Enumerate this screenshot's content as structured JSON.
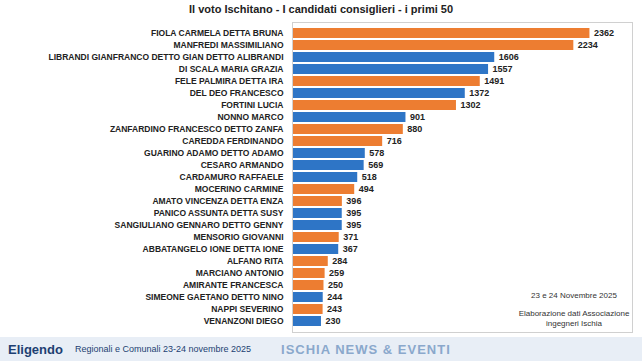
{
  "chart_data": {
    "type": "bar",
    "title": "Il voto Ischitano - I candidati consiglieri - i primi 50",
    "orientation": "horizontal",
    "data_labels": true,
    "tick_labels": "y",
    "categories": [
      "FIOLA CARMELA DETTA BRUNA",
      "MANFREDI MASSIMILIANO",
      "LIBRANDI GIANFRANCO DETTO GIAN DETTO ALIBRANDI",
      "DI SCALA MARIA GRAZIA",
      "FELE PALMIRA DETTA IRA",
      "DEL DEO FRANCESCO",
      "FORTINI LUCIA",
      "NONNO MARCO",
      "ZANFARDINO FRANCESCO DETTO ZANFA",
      "CAREDDA FERDINANDO",
      "GUARINO ADAMO DETTO ADAMO",
      "CESARO ARMANDO",
      "CARDAMURO RAFFAELE",
      "MOCERINO CARMINE",
      "AMATO VINCENZA DETTA ENZA",
      "PANICO ASSUNTA DETTA SUSY",
      "SANGIULIANO GENNARO DETTO GENNY",
      "MENSORIO GIOVANNI",
      "ABBATANGELO IONE DETTA IONE",
      "ALFANO RITA",
      "MARCIANO ANTONIO",
      "AMIRANTE FRANCESCA",
      "SIMEONE GAETANO DETTO NINO",
      "NAPPI SEVERINO",
      "VENANZONI DIEGO"
    ],
    "values": [
      2362,
      2234,
      1606,
      1557,
      1491,
      1372,
      1302,
      901,
      880,
      716,
      578,
      569,
      518,
      494,
      396,
      395,
      395,
      371,
      367,
      284,
      259,
      250,
      244,
      243,
      230
    ],
    "colors": [
      "#ed7d31",
      "#ed7d31",
      "#2e75c6",
      "#2e75c6",
      "#ed7d31",
      "#2e75c6",
      "#ed7d31",
      "#2e75c6",
      "#ed7d31",
      "#ed7d31",
      "#2e75c6",
      "#2e75c6",
      "#2e75c6",
      "#ed7d31",
      "#ed7d31",
      "#2e75c6",
      "#2e75c6",
      "#ed7d31",
      "#2e75c6",
      "#ed7d31",
      "#ed7d31",
      "#ed7d31",
      "#2e75c6",
      "#ed7d31",
      "#2e75c6"
    ],
    "xlim": [
      0,
      2700
    ],
    "xticks": [],
    "annotations": [
      "Eligendo",
      "Regionali e Comunali 23-24 novembre 2025",
      "ISCHIA NEWS & EVENTI",
      "23 e 24 Novembre 2025",
      "Elaborazione dati Associazione ingegneri Ischia"
    ]
  }
}
